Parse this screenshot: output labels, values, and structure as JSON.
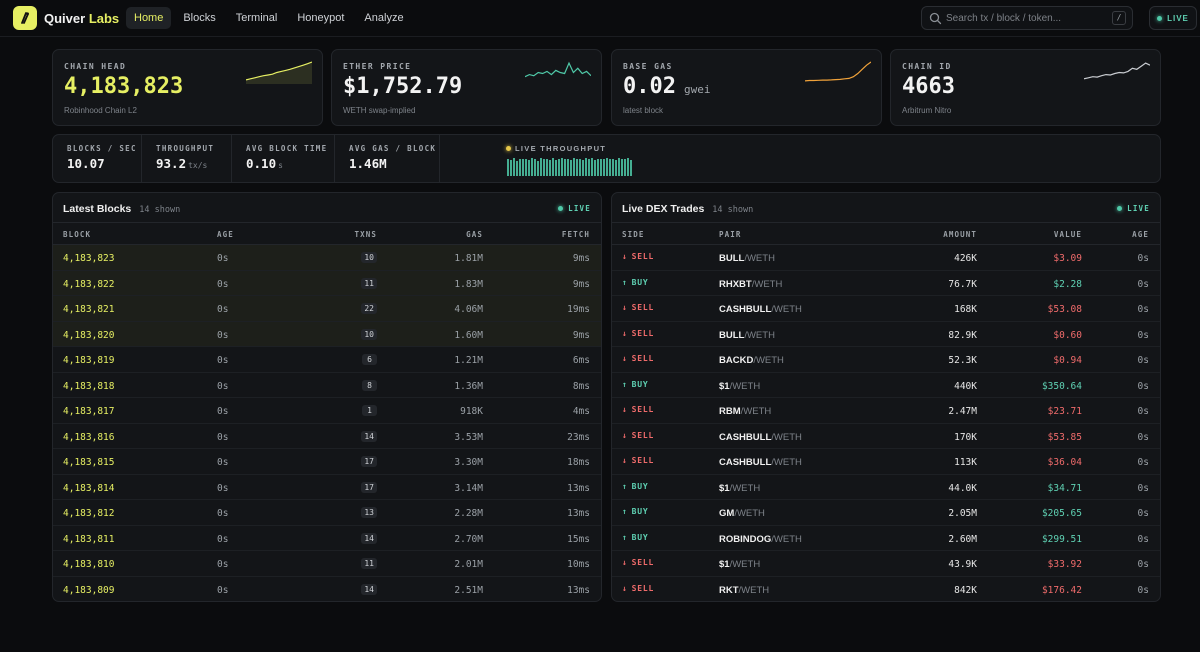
{
  "app": {
    "brand_first": "Quiver",
    "brand_second": "Labs",
    "nav": [
      {
        "label": "Home",
        "active": true
      },
      {
        "label": "Blocks",
        "active": false
      },
      {
        "label": "Terminal",
        "active": false
      },
      {
        "label": "Honeypot",
        "active": false
      },
      {
        "label": "Analyze",
        "active": false
      }
    ],
    "search_placeholder": "Search tx / block / token...",
    "search_shortcut": "/",
    "live_label": "LIVE",
    "colors": {
      "accent": "#e6ef63",
      "buy": "#5fd1b3",
      "sell": "#ef6b6b",
      "background": "#0b0c0e",
      "card": "#131518"
    }
  },
  "cards": [
    {
      "label": "CHAIN HEAD",
      "value": "4,183,823",
      "unit": "",
      "sub": "Robinhood Chain L2",
      "spark_color": "#e6ef63"
    },
    {
      "label": "ETHER PRICE",
      "value": "$1,752.79",
      "unit": "",
      "sub": "WETH swap-implied",
      "spark_color": "#4fc9a8"
    },
    {
      "label": "BASE GAS",
      "value": "0.02",
      "unit": "gwei",
      "sub": "latest block",
      "spark_color": "#f0a23a"
    },
    {
      "label": "CHAIN ID",
      "value": "4663",
      "unit": "",
      "sub": "Arbitrum Nitro",
      "spark_color": "#c9ccd1"
    }
  ],
  "metrics": [
    {
      "label": "BLOCKS / SEC",
      "value": "10.07",
      "unit": ""
    },
    {
      "label": "THROUGHPUT",
      "value": "93.2",
      "unit": "tx/s"
    },
    {
      "label": "AVG BLOCK TIME",
      "value": "0.10",
      "unit": "s"
    },
    {
      "label": "AVG GAS / BLOCK",
      "value": "1.46M",
      "unit": ""
    }
  ],
  "live_throughput": {
    "label": "LIVE THROUGHPUT",
    "levels": [
      0.9,
      0.85,
      0.95,
      0.8,
      0.9,
      0.88,
      0.92,
      0.86,
      0.95,
      0.9,
      0.78,
      0.93,
      0.88,
      0.9,
      0.85,
      0.96,
      0.82,
      0.9,
      0.94,
      0.87,
      0.9,
      0.83,
      0.95,
      0.89,
      0.91,
      0.86,
      0.93,
      0.88,
      0.97,
      0.84,
      0.9,
      0.92,
      0.87,
      0.95,
      0.89,
      0.9,
      0.85,
      0.93,
      0.88,
      0.9,
      0.94,
      0.86
    ]
  },
  "blocks_panel": {
    "title": "Latest Blocks",
    "count": "14 shown",
    "live": "LIVE",
    "headers": {
      "block": "BLOCK",
      "age": "AGE",
      "txns": "TXNS",
      "gas": "GAS",
      "fetch": "FETCH"
    },
    "rows": [
      {
        "block": "4,183,823",
        "age": "0s",
        "txns": "10",
        "gas": "1.81M",
        "fetch": "9ms",
        "highlight": true
      },
      {
        "block": "4,183,822",
        "age": "0s",
        "txns": "11",
        "gas": "1.83M",
        "fetch": "9ms",
        "highlight": true
      },
      {
        "block": "4,183,821",
        "age": "0s",
        "txns": "22",
        "gas": "4.06M",
        "fetch": "19ms",
        "highlight": true
      },
      {
        "block": "4,183,820",
        "age": "0s",
        "txns": "10",
        "gas": "1.60M",
        "fetch": "9ms",
        "highlight": true
      },
      {
        "block": "4,183,819",
        "age": "0s",
        "txns": "6",
        "gas": "1.21M",
        "fetch": "6ms",
        "highlight": false
      },
      {
        "block": "4,183,818",
        "age": "0s",
        "txns": "8",
        "gas": "1.36M",
        "fetch": "8ms",
        "highlight": false
      },
      {
        "block": "4,183,817",
        "age": "0s",
        "txns": "1",
        "gas": "918K",
        "fetch": "4ms",
        "highlight": false
      },
      {
        "block": "4,183,816",
        "age": "0s",
        "txns": "14",
        "gas": "3.53M",
        "fetch": "23ms",
        "highlight": false
      },
      {
        "block": "4,183,815",
        "age": "0s",
        "txns": "17",
        "gas": "3.30M",
        "fetch": "18ms",
        "highlight": false
      },
      {
        "block": "4,183,814",
        "age": "0s",
        "txns": "17",
        "gas": "3.14M",
        "fetch": "13ms",
        "highlight": false
      },
      {
        "block": "4,183,812",
        "age": "0s",
        "txns": "13",
        "gas": "2.28M",
        "fetch": "13ms",
        "highlight": false
      },
      {
        "block": "4,183,811",
        "age": "0s",
        "txns": "14",
        "gas": "2.70M",
        "fetch": "15ms",
        "highlight": false
      },
      {
        "block": "4,183,810",
        "age": "0s",
        "txns": "11",
        "gas": "2.01M",
        "fetch": "10ms",
        "highlight": false
      },
      {
        "block": "4,183,809",
        "age": "0s",
        "txns": "14",
        "gas": "2.51M",
        "fetch": "13ms",
        "highlight": false
      }
    ]
  },
  "trades_panel": {
    "title": "Live DEX Trades",
    "count": "14 shown",
    "live": "LIVE",
    "headers": {
      "side": "SIDE",
      "pair": "PAIR",
      "amount": "AMOUNT",
      "value": "VALUE",
      "age": "AGE"
    },
    "rows": [
      {
        "side": "SELL",
        "base": "BULL",
        "quote": "/WETH",
        "amount": "426K",
        "value": "$3.09",
        "age": "0s"
      },
      {
        "side": "BUY",
        "base": "RHXBT",
        "quote": "/WETH",
        "amount": "76.7K",
        "value": "$2.28",
        "age": "0s"
      },
      {
        "side": "SELL",
        "base": "CASHBULL",
        "quote": "/WETH",
        "amount": "168K",
        "value": "$53.08",
        "age": "0s"
      },
      {
        "side": "SELL",
        "base": "BULL",
        "quote": "/WETH",
        "amount": "82.9K",
        "value": "$0.60",
        "age": "0s"
      },
      {
        "side": "SELL",
        "base": "BACKD",
        "quote": "/WETH",
        "amount": "52.3K",
        "value": "$0.94",
        "age": "0s"
      },
      {
        "side": "BUY",
        "base": "$1",
        "quote": "/WETH",
        "amount": "440K",
        "value": "$350.64",
        "age": "0s"
      },
      {
        "side": "SELL",
        "base": "RBM",
        "quote": "/WETH",
        "amount": "2.47M",
        "value": "$23.71",
        "age": "0s"
      },
      {
        "side": "SELL",
        "base": "CASHBULL",
        "quote": "/WETH",
        "amount": "170K",
        "value": "$53.85",
        "age": "0s"
      },
      {
        "side": "SELL",
        "base": "CASHBULL",
        "quote": "/WETH",
        "amount": "113K",
        "value": "$36.04",
        "age": "0s"
      },
      {
        "side": "BUY",
        "base": "$1",
        "quote": "/WETH",
        "amount": "44.0K",
        "value": "$34.71",
        "age": "0s"
      },
      {
        "side": "BUY",
        "base": "GM",
        "quote": "/WETH",
        "amount": "2.05M",
        "value": "$205.65",
        "age": "0s"
      },
      {
        "side": "BUY",
        "base": "ROBINDOG",
        "quote": "/WETH",
        "amount": "2.60M",
        "value": "$299.51",
        "age": "0s"
      },
      {
        "side": "SELL",
        "base": "$1",
        "quote": "/WETH",
        "amount": "43.9K",
        "value": "$33.92",
        "age": "0s"
      },
      {
        "side": "SELL",
        "base": "RKT",
        "quote": "/WETH",
        "amount": "842K",
        "value": "$176.42",
        "age": "0s"
      }
    ]
  }
}
